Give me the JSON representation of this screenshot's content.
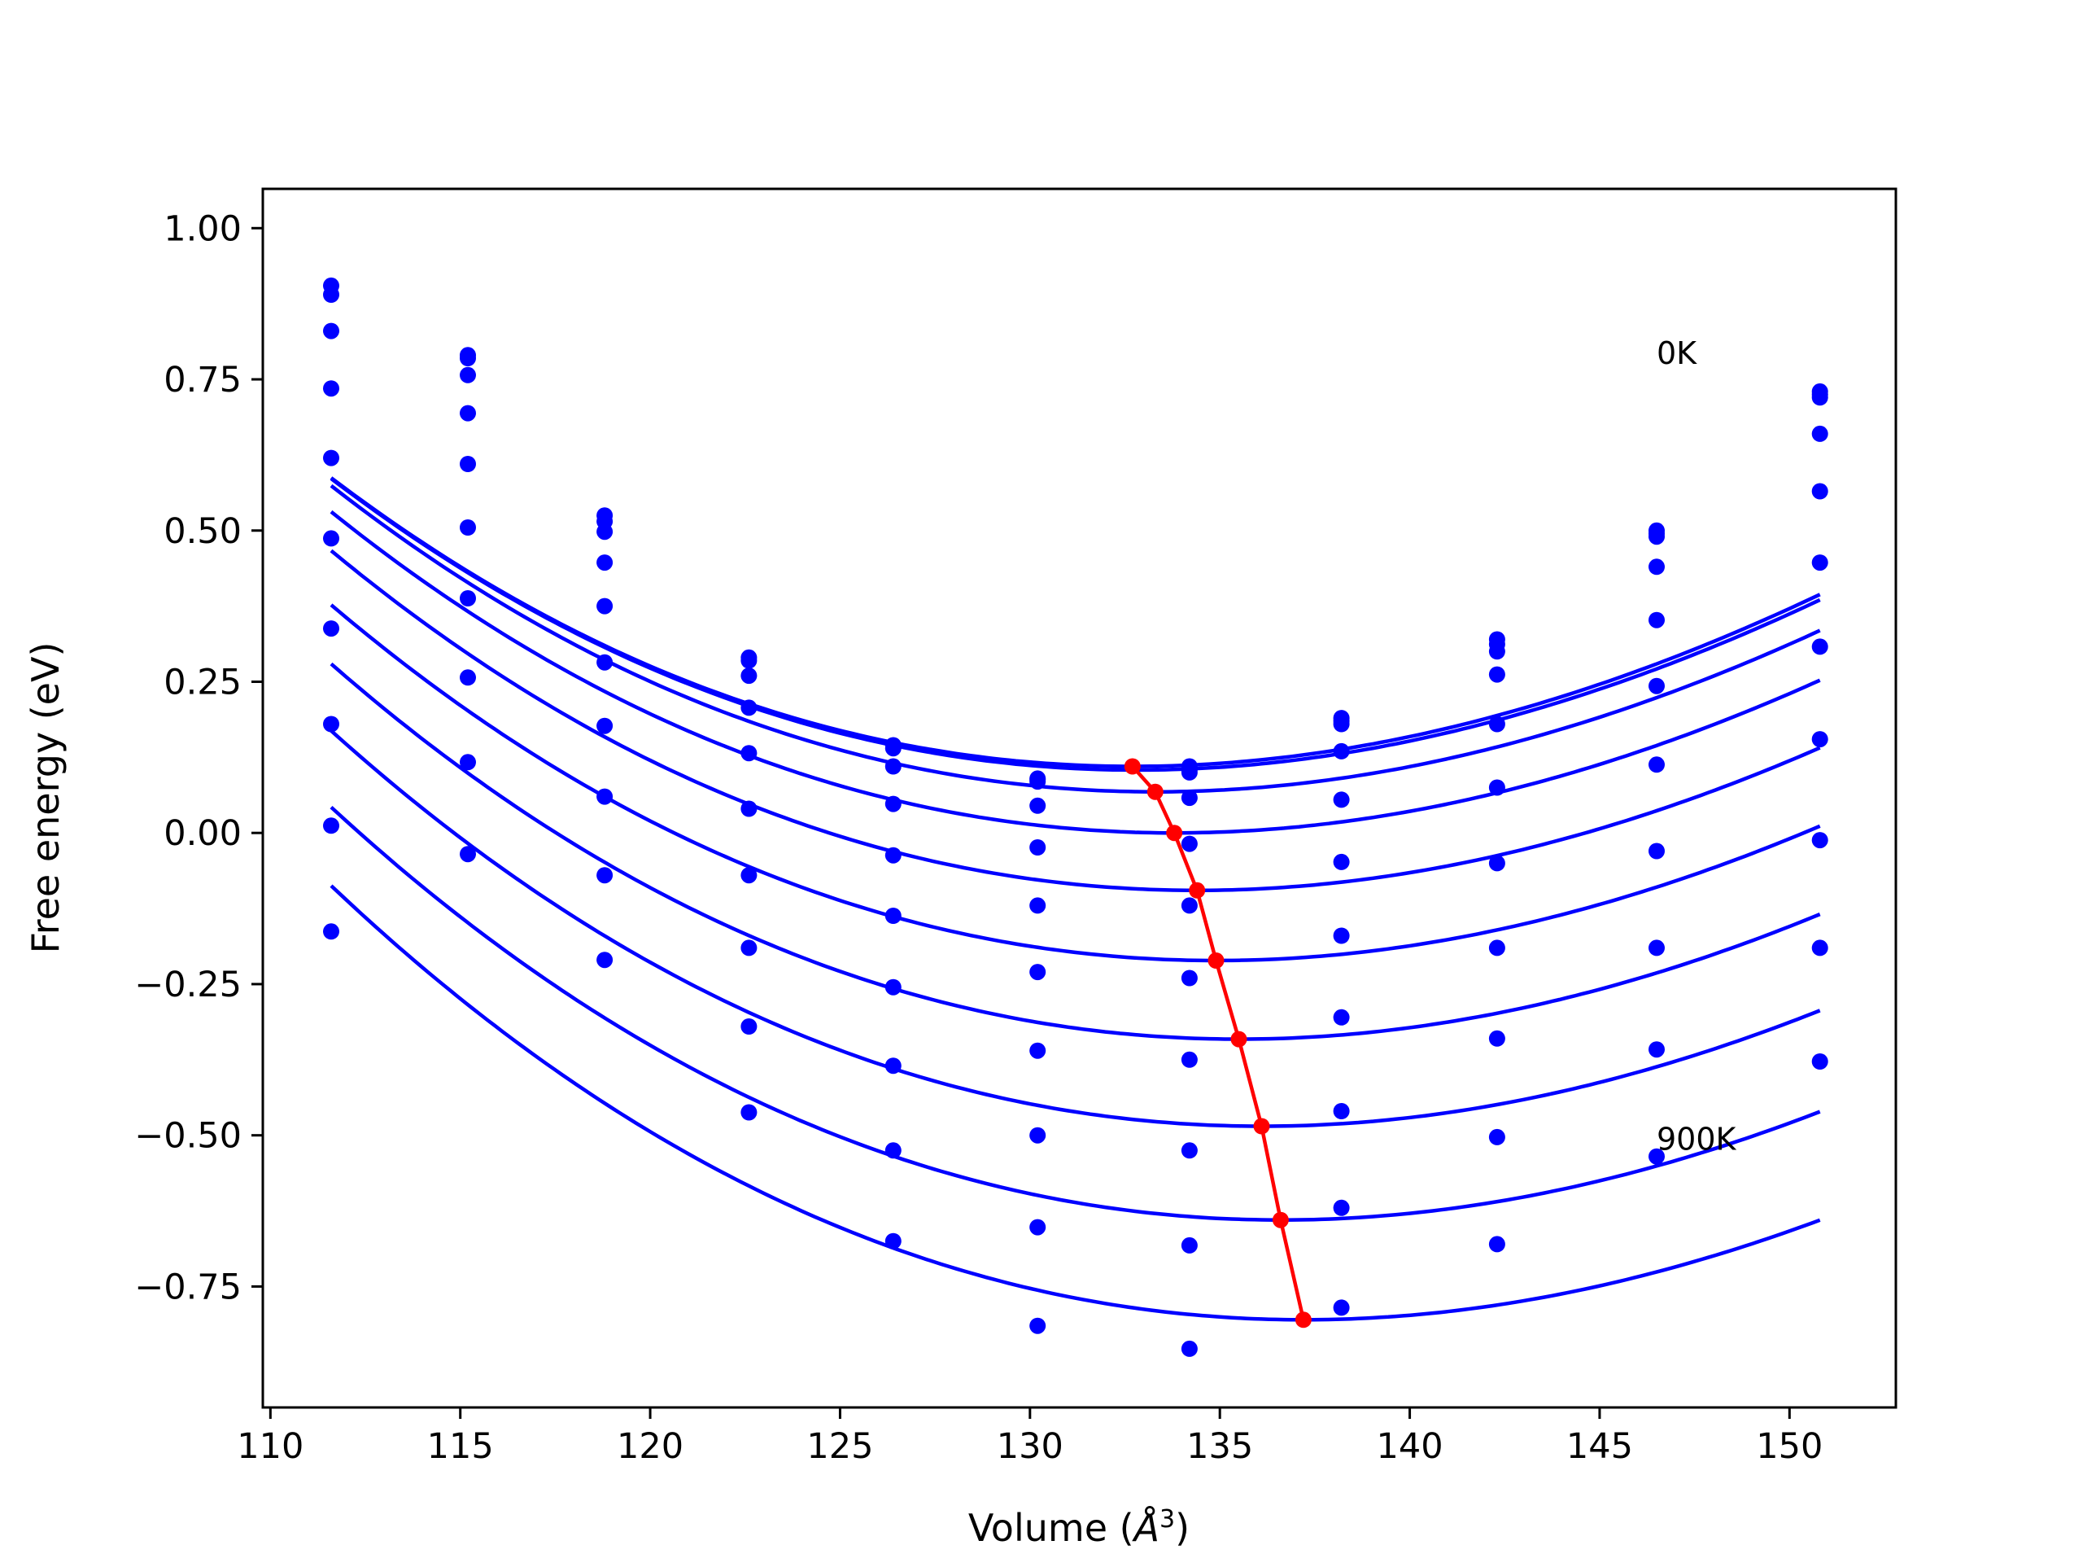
{
  "chart_data": {
    "type": "scatter",
    "title": "",
    "xlabel": "Volume",
    "xlabel_unit_base": "Å",
    "xlabel_unit_exp": "3",
    "ylabel": "Free energy (eV)",
    "xlim": [
      109.8,
      152.8
    ],
    "ylim": [
      -0.95,
      1.065
    ],
    "xticks": [
      110,
      115,
      120,
      125,
      130,
      135,
      140,
      145,
      150
    ],
    "xtick_labels": [
      "110",
      "115",
      "120",
      "125",
      "130",
      "135",
      "140",
      "145",
      "150"
    ],
    "yticks": [
      1.0,
      0.75,
      0.5,
      0.25,
      0.0,
      -0.25,
      -0.5,
      -0.75
    ],
    "ytick_labels": [
      "1.00",
      "0.75",
      "0.50",
      "0.25",
      "0.00",
      "−0.25",
      "−0.50",
      "−0.75"
    ],
    "grid": false,
    "annotations": [
      {
        "text": "0K",
        "x": 146.5,
        "y": 0.79
      },
      {
        "text": "900K",
        "x": 146.5,
        "y": -0.51
      }
    ],
    "series_color": "#0000ff",
    "minima_color": "#ff0000",
    "volumes": [
      111.6,
      115.2,
      118.8,
      122.6,
      126.4,
      130.2,
      134.2,
      138.2,
      142.3,
      146.5,
      150.8
    ],
    "series": [
      {
        "label": "0K",
        "points": [
          0.905,
          0.79,
          0.525,
          0.29,
          0.145,
          0.09,
          0.11,
          0.19,
          0.32,
          0.5,
          0.73
        ],
        "fit": {
          "v0": 132.7,
          "e0": 0.11,
          "a": 0.000962,
          "b": -5.2e-06
        }
      },
      {
        "points": [
          0.89,
          0.785,
          0.515,
          0.285,
          0.14,
          0.088,
          0.105,
          0.185,
          0.312,
          0.495,
          0.725
        ],
        "fit": {
          "v0": 132.8,
          "e0": 0.104,
          "a": 0.000962,
          "b": -5.2e-06
        }
      },
      {
        "points": [
          0.83,
          0.757,
          0.498,
          0.26,
          0.11,
          0.085,
          0.1,
          0.18,
          0.3,
          0.49,
          0.72
        ],
        "fit": {
          "v0": 133.3,
          "e0": 0.068,
          "a": 0.000962,
          "b": -5.2e-06
        }
      },
      {
        "points": [
          0.735,
          0.694,
          0.447,
          0.207,
          0.048,
          0.045,
          0.058,
          0.135,
          0.262,
          0.44,
          0.66
        ],
        "fit": {
          "v0": 133.8,
          "e0": 0.0,
          "a": 0.000962,
          "b": -5.2e-06
        }
      },
      {
        "points": [
          0.62,
          0.61,
          0.375,
          0.132,
          -0.037,
          -0.024,
          -0.018,
          0.055,
          0.18,
          0.352,
          0.565
        ],
        "fit": {
          "v0": 134.4,
          "e0": -0.095,
          "a": 0.000962,
          "b": -5.2e-06
        }
      },
      {
        "points": [
          0.487,
          0.505,
          0.282,
          0.04,
          -0.137,
          -0.12,
          -0.12,
          -0.048,
          0.075,
          0.243,
          0.447
        ],
        "fit": {
          "v0": 134.9,
          "e0": -0.211,
          "a": 0.000962,
          "b": -5.2e-06
        }
      },
      {
        "points": [
          0.338,
          0.388,
          0.177,
          -0.07,
          -0.255,
          -0.23,
          -0.24,
          -0.17,
          -0.05,
          0.113,
          0.308
        ],
        "fit": {
          "v0": 135.5,
          "e0": -0.341,
          "a": 0.000962,
          "b": -5.2e-06
        }
      },
      {
        "points": [
          0.18,
          0.257,
          0.06,
          -0.19,
          -0.385,
          -0.36,
          -0.375,
          -0.305,
          -0.19,
          -0.03,
          0.155
        ],
        "fit": {
          "v0": 136.1,
          "e0": -0.485,
          "a": 0.000962,
          "b": -5.2e-06
        }
      },
      {
        "points": [
          0.012,
          0.117,
          -0.07,
          -0.32,
          -0.525,
          -0.5,
          -0.525,
          -0.46,
          -0.34,
          -0.19,
          -0.012
        ],
        "fit": {
          "v0": 136.6,
          "e0": -0.64,
          "a": 0.000962,
          "b": -5.2e-06
        }
      },
      {
        "label": "900K",
        "points": [
          -0.163,
          -0.035,
          -0.21,
          -0.462,
          -0.675,
          -0.652,
          -0.682,
          -0.62,
          -0.503,
          -0.358,
          -0.19
        ],
        "fit": {
          "v0": 137.2,
          "e0": -0.805,
          "a": 0.000962,
          "b": -5.2e-06
        }
      },
      {
        "points": [
          null,
          null,
          null,
          null,
          null,
          -0.815,
          -0.853,
          -0.785,
          -0.68,
          -0.535,
          -0.378
        ]
      }
    ],
    "minima_line": {
      "x": [
        132.7,
        133.3,
        133.8,
        134.4,
        134.9,
        135.5,
        136.1,
        136.6,
        137.2
      ],
      "y": [
        0.11,
        0.068,
        0.0,
        -0.095,
        -0.211,
        -0.341,
        -0.485,
        -0.64,
        -0.805
      ]
    },
    "fit_range": [
      111.6,
      150.8
    ]
  }
}
